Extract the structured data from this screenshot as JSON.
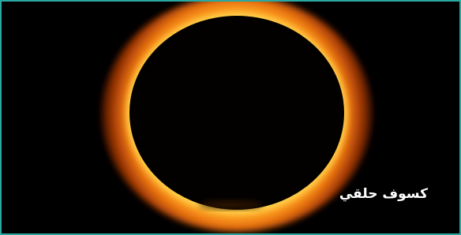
{
  "caption": "كسوف حلقي"
}
